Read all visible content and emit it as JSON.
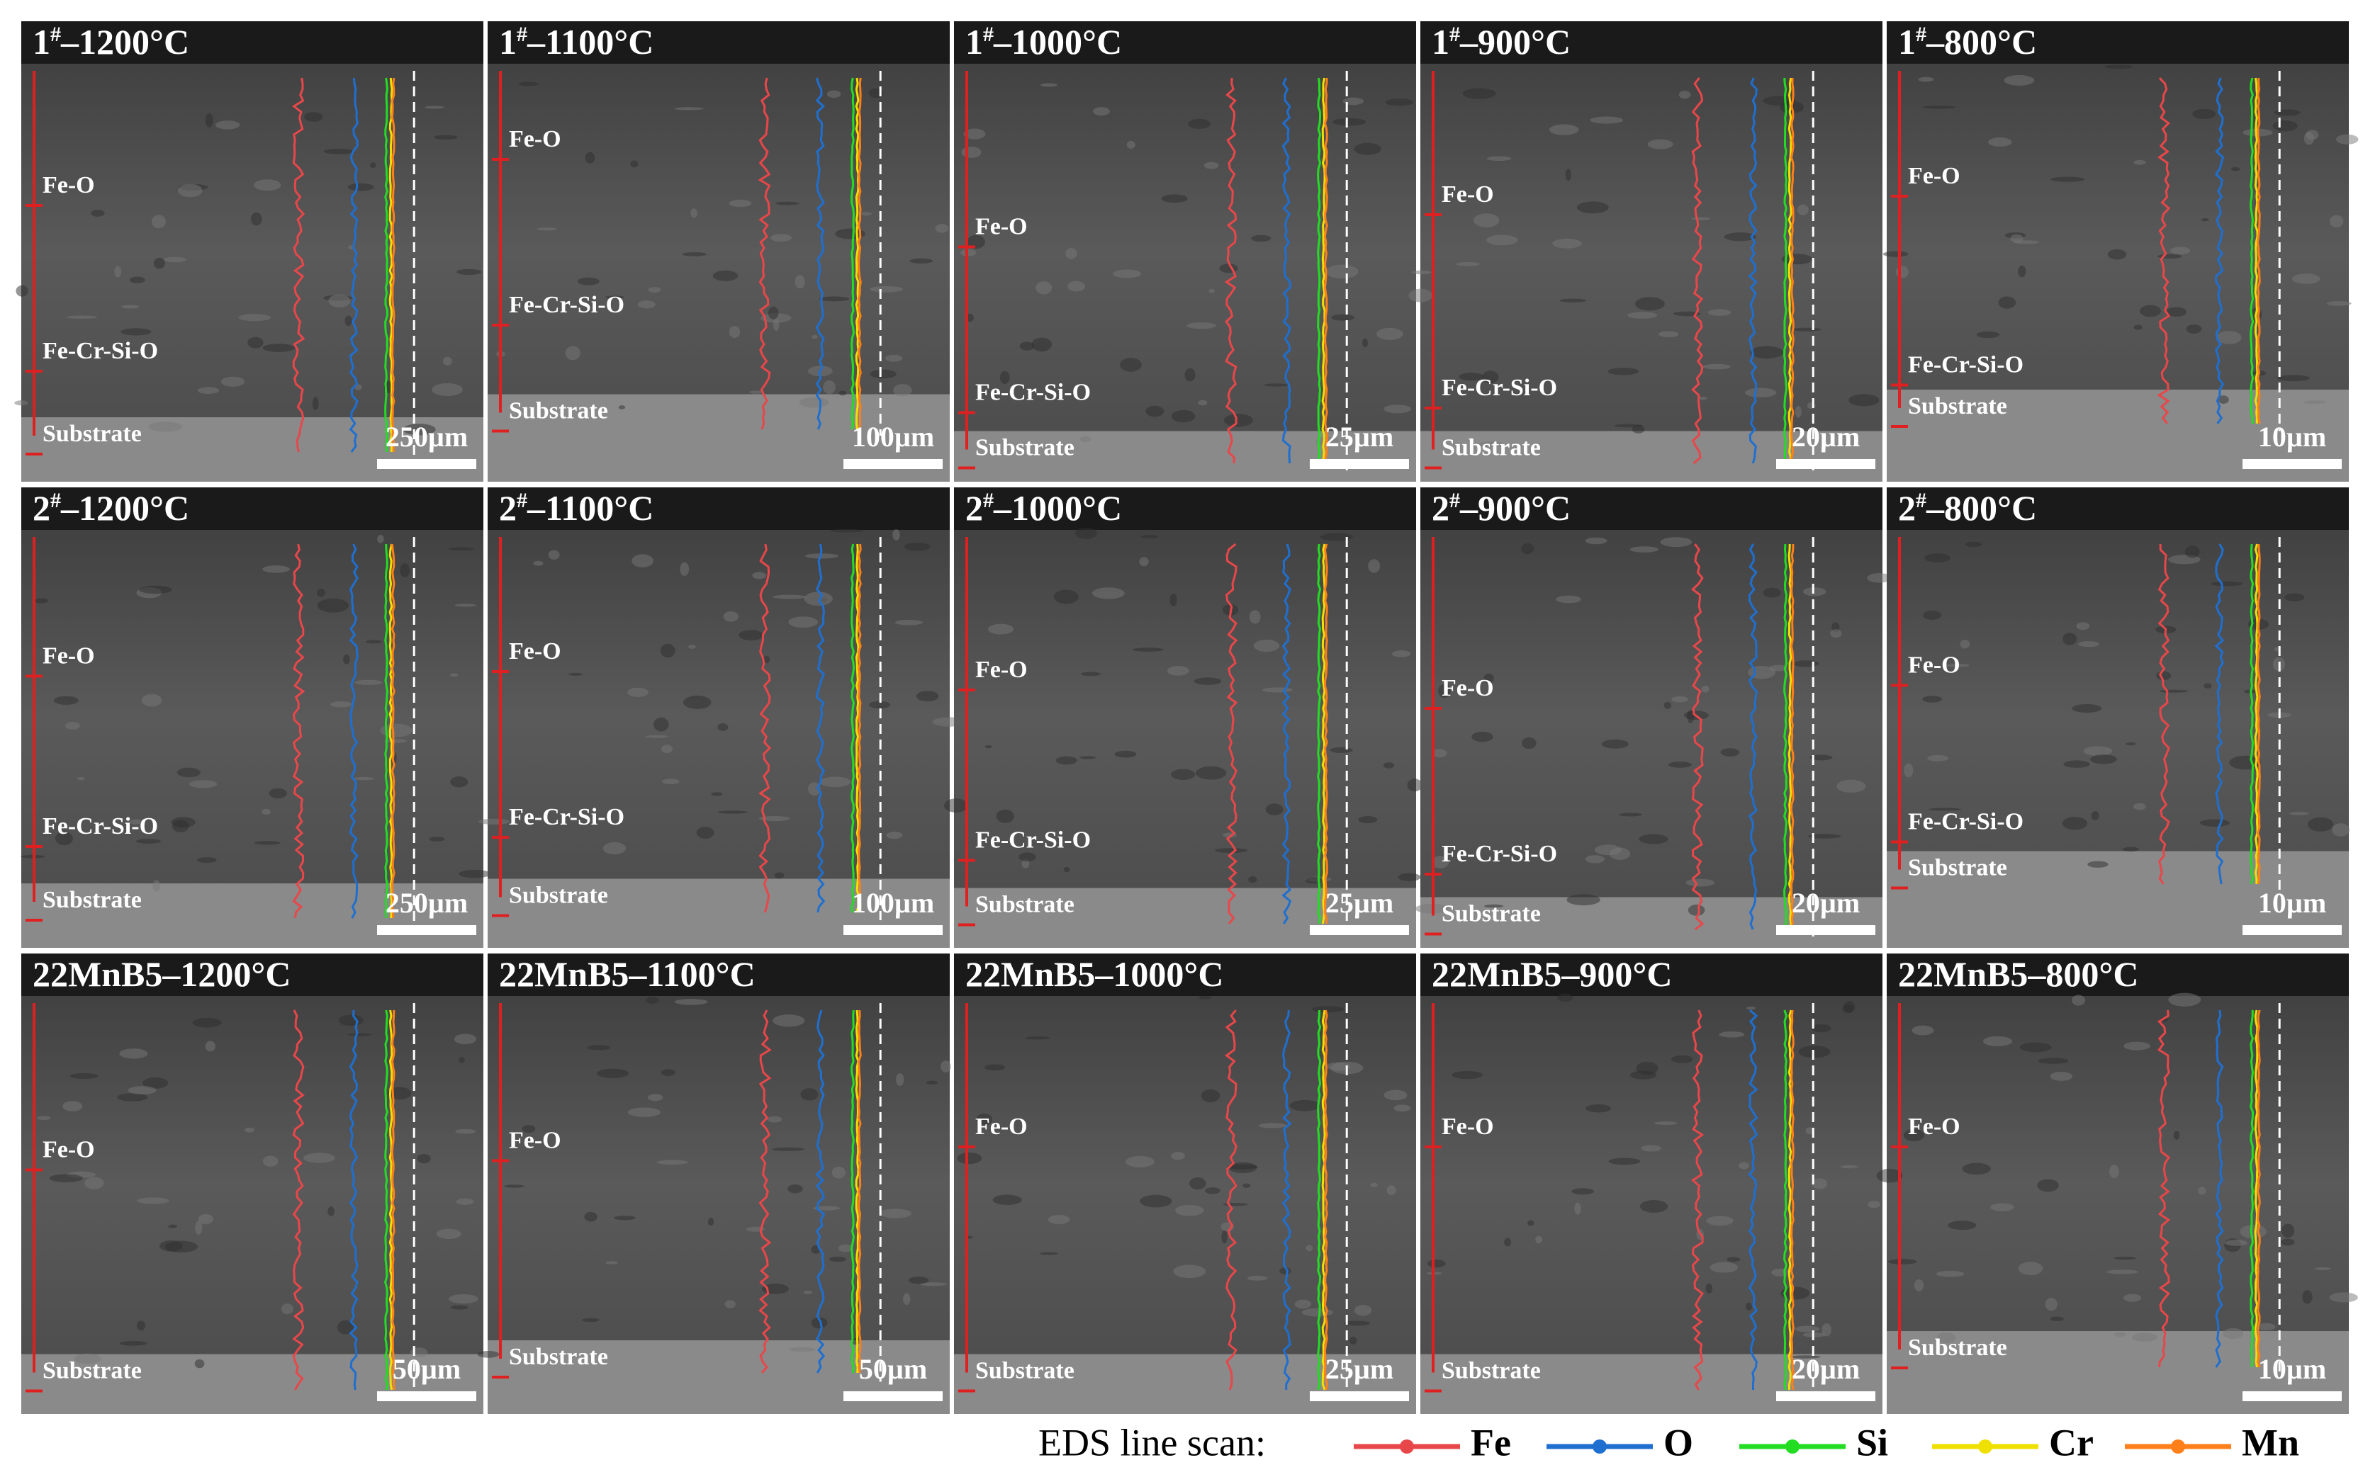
{
  "panels": [
    {
      "title": {
        "sample": "1",
        "sup": "#",
        "rest": "–1200°C"
      },
      "layers": [
        "Fe-O",
        "Fe-Cr-Si-O",
        "Substrate"
      ],
      "scale_bar": "250µm"
    },
    {
      "title": {
        "sample": "1",
        "sup": "#",
        "rest": "–1100°C"
      },
      "layers": [
        "Fe-O",
        "Fe-Cr-Si-O",
        "Substrate"
      ],
      "scale_bar": "100µm"
    },
    {
      "title": {
        "sample": "1",
        "sup": "#",
        "rest": "–1000°C"
      },
      "layers": [
        "Fe-O",
        "Fe-Cr-Si-O",
        "Substrate"
      ],
      "scale_bar": "25µm"
    },
    {
      "title": {
        "sample": "1",
        "sup": "#",
        "rest": "–900°C"
      },
      "layers": [
        "Fe-O",
        "Fe-Cr-Si-O",
        "Substrate"
      ],
      "scale_bar": "20µm"
    },
    {
      "title": {
        "sample": "1",
        "sup": "#",
        "rest": "–800°C"
      },
      "layers": [
        "Fe-O",
        "Fe-Cr-Si-O",
        "Substrate"
      ],
      "scale_bar": "10µm"
    },
    {
      "title": {
        "sample": "2",
        "sup": "#",
        "rest": "–1200°C"
      },
      "layers": [
        "Fe-O",
        "Fe-Cr-Si-O",
        "Substrate"
      ],
      "scale_bar": "250µm"
    },
    {
      "title": {
        "sample": "2",
        "sup": "#",
        "rest": "–1100°C"
      },
      "layers": [
        "Fe-O",
        "Fe-Cr-Si-O",
        "Substrate"
      ],
      "scale_bar": "100µm"
    },
    {
      "title": {
        "sample": "2",
        "sup": "#",
        "rest": "–1000°C"
      },
      "layers": [
        "Fe-O",
        "Fe-Cr-Si-O",
        "Substrate"
      ],
      "scale_bar": "25µm"
    },
    {
      "title": {
        "sample": "2",
        "sup": "#",
        "rest": "–900°C"
      },
      "layers": [
        "Fe-O",
        "Fe-Cr-Si-O",
        "Substrate"
      ],
      "scale_bar": "20µm"
    },
    {
      "title": {
        "sample": "2",
        "sup": "#",
        "rest": "–800°C"
      },
      "layers": [
        "Fe-O",
        "Fe-Cr-Si-O",
        "Substrate"
      ],
      "scale_bar": "10µm"
    },
    {
      "title": {
        "sample": "22MnB5",
        "rest": "–1200°C"
      },
      "layers": [
        "Fe-O",
        "Substrate"
      ],
      "scale_bar": "50µm"
    },
    {
      "title": {
        "sample": "22MnB5",
        "rest": "–1100°C"
      },
      "layers": [
        "Fe-O",
        "Substrate"
      ],
      "scale_bar": "50µm"
    },
    {
      "title": {
        "sample": "22MnB5",
        "rest": "–1000°C"
      },
      "layers": [
        "Fe-O",
        "Substrate"
      ],
      "scale_bar": "25µm"
    },
    {
      "title": {
        "sample": "22MnB5",
        "rest": "–900°C"
      },
      "layers": [
        "Fe-O",
        "Substrate"
      ],
      "scale_bar": "20µm"
    },
    {
      "title": {
        "sample": "22MnB5",
        "rest": "–800°C"
      },
      "layers": [
        "Fe-O",
        "Substrate"
      ],
      "scale_bar": "10µm"
    }
  ],
  "legend": {
    "title": "EDS line scan:",
    "items": [
      {
        "name": "Fe",
        "color": "#e8474a"
      },
      {
        "name": "O",
        "color": "#1f6fd0"
      },
      {
        "name": "Si",
        "color": "#22dd22"
      },
      {
        "name": "Cr",
        "color": "#f0e000"
      },
      {
        "name": "Mn",
        "color": "#ff7f1a"
      }
    ]
  }
}
